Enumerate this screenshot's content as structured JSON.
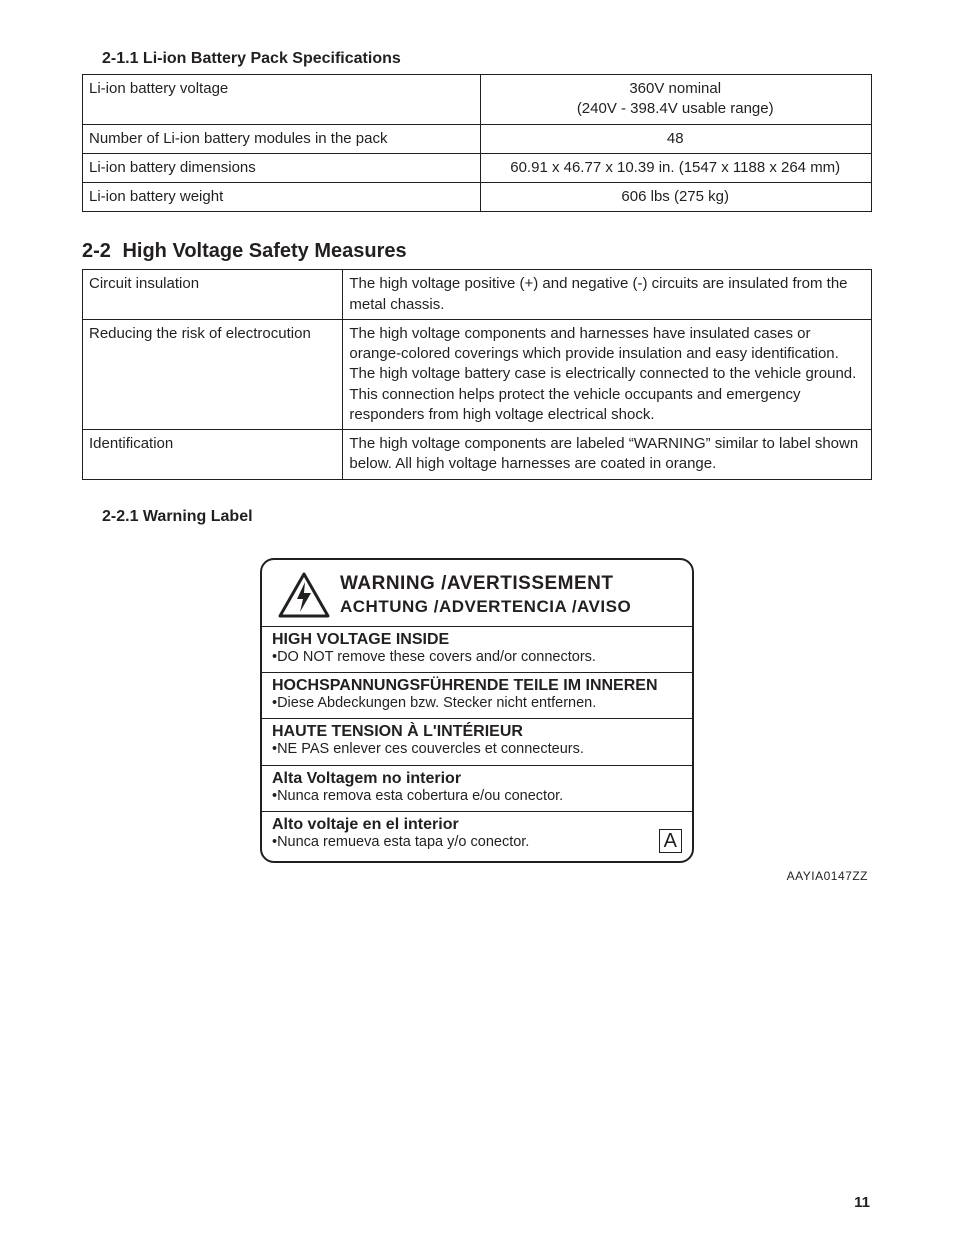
{
  "section211": {
    "heading": "2-1.1  Li-ion Battery Pack Specifications",
    "rows": [
      {
        "label": "Li-ion battery voltage",
        "value": "360V nominal\n(240V - 398.4V usable range)"
      },
      {
        "label": "Number of Li-ion battery modules in the pack",
        "value": "48"
      },
      {
        "label": "Li-ion battery dimensions",
        "value": "60.91 x 46.77 x 10.39 in. (1547 x 1188 x 264 mm)"
      },
      {
        "label": "Li-ion battery weight",
        "value": "606 lbs (275 kg)"
      }
    ]
  },
  "section22": {
    "heading_num": "2-2",
    "heading_text": "High Voltage Safety Measures",
    "rows": [
      {
        "label": "Circuit insulation",
        "value": "The high voltage positive (+) and negative (-) circuits are insulated from the metal chassis."
      },
      {
        "label": "Reducing the risk of electrocution",
        "value": "The high voltage components and harnesses have insulated cases or orange-colored coverings which provide insulation and easy identification.\nThe high voltage battery case is electrically connected to the vehicle ground. This connection helps protect the vehicle occupants and emergency responders from high voltage electrical shock."
      },
      {
        "label": "Identification",
        "value": "The high voltage components are labeled “WARNING” similar to label shown below. All high voltage harnesses are coated in orange."
      }
    ]
  },
  "section221": {
    "heading": "2-2.1  Warning Label",
    "label": {
      "header_line1": "WARNING /AVERTISSEMENT",
      "header_line2": "ACHTUNG /ADVERTENCIA /AVISO",
      "blocks": [
        {
          "title": "HIGH VOLTAGE INSIDE",
          "body": "•DO NOT remove these covers and/or connectors."
        },
        {
          "title": "HOCHSPANNUNGSFÜHRENDE TEILE IM INNEREN",
          "body": "•Diese Abdeckungen bzw. Stecker nicht entfernen."
        },
        {
          "title": "HAUTE TENSION À L'INTÉRIEUR",
          "body": "•NE PAS enlever ces couvercles et connecteurs."
        },
        {
          "title": "Alta Voltagem no interior",
          "body": "•Nunca remova esta cobertura e/ou conector."
        },
        {
          "title": "Alto voltaje en el interior",
          "body": "•Nunca remueva esta tapa y/o conector."
        }
      ],
      "box_letter": "A",
      "fig_code": "AAYIA0147ZZ"
    }
  },
  "page_number": "11",
  "colors": {
    "text": "#231f20",
    "border": "#231f20",
    "background": "#ffffff"
  }
}
